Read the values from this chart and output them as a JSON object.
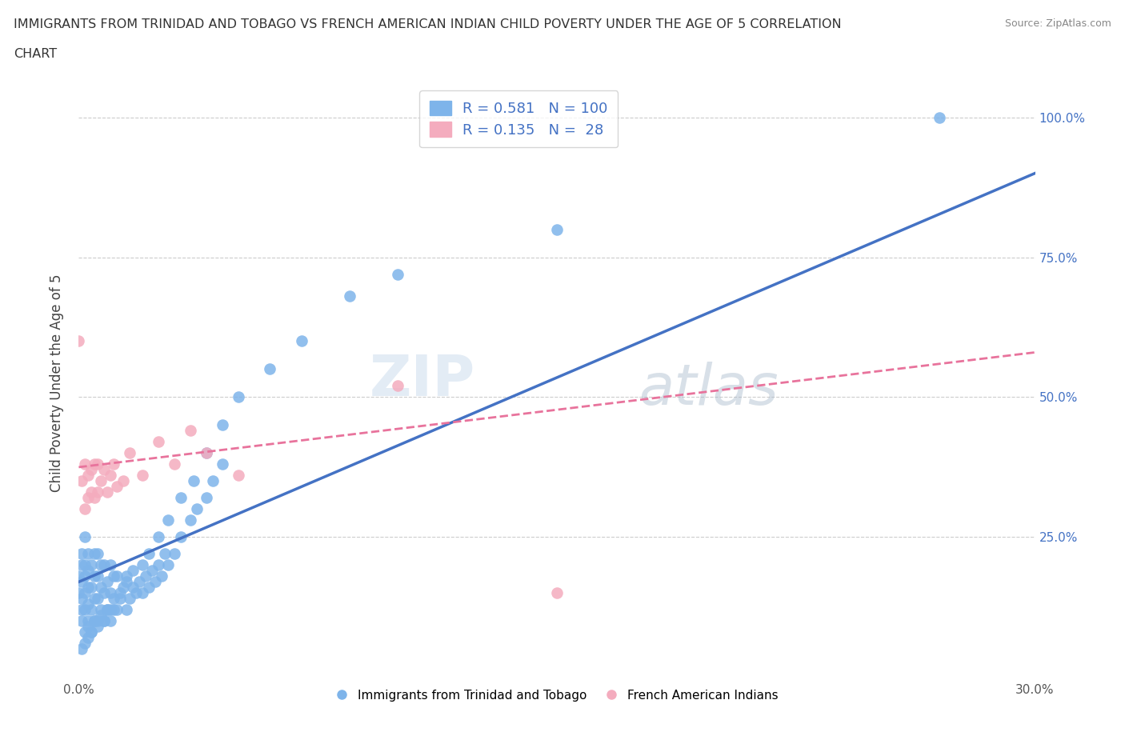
{
  "title_line1": "IMMIGRANTS FROM TRINIDAD AND TOBAGO VS FRENCH AMERICAN INDIAN CHILD POVERTY UNDER THE AGE OF 5 CORRELATION",
  "title_line2": "CHART",
  "source": "Source: ZipAtlas.com",
  "ylabel": "Child Poverty Under the Age of 5",
  "xlim": [
    0.0,
    0.3
  ],
  "ylim": [
    0.0,
    1.05
  ],
  "R_blue": 0.581,
  "N_blue": 100,
  "R_pink": 0.135,
  "N_pink": 28,
  "blue_color": "#7EB4EA",
  "pink_color": "#F4ACBE",
  "blue_line_color": "#4472C4",
  "pink_line_color": "#E8739C",
  "watermark_ZIP": "ZIP",
  "watermark_atlas": "atlas",
  "legend_label_blue": "Immigrants from Trinidad and Tobago",
  "legend_label_pink": "French American Indians",
  "blue_scatter_x": [
    0.0,
    0.0,
    0.001,
    0.001,
    0.001,
    0.001,
    0.001,
    0.001,
    0.002,
    0.002,
    0.002,
    0.002,
    0.002,
    0.002,
    0.003,
    0.003,
    0.003,
    0.003,
    0.003,
    0.004,
    0.004,
    0.004,
    0.004,
    0.005,
    0.005,
    0.005,
    0.005,
    0.006,
    0.006,
    0.006,
    0.006,
    0.007,
    0.007,
    0.007,
    0.008,
    0.008,
    0.008,
    0.009,
    0.009,
    0.01,
    0.01,
    0.01,
    0.011,
    0.011,
    0.012,
    0.012,
    0.013,
    0.014,
    0.015,
    0.015,
    0.016,
    0.017,
    0.018,
    0.019,
    0.02,
    0.021,
    0.022,
    0.023,
    0.024,
    0.025,
    0.026,
    0.027,
    0.028,
    0.03,
    0.032,
    0.035,
    0.037,
    0.04,
    0.042,
    0.045,
    0.001,
    0.002,
    0.003,
    0.003,
    0.004,
    0.005,
    0.006,
    0.007,
    0.008,
    0.009,
    0.01,
    0.011,
    0.013,
    0.015,
    0.017,
    0.02,
    0.022,
    0.025,
    0.028,
    0.032,
    0.036,
    0.04,
    0.045,
    0.05,
    0.06,
    0.07,
    0.085,
    0.1,
    0.15,
    0.27
  ],
  "blue_scatter_y": [
    0.15,
    0.18,
    0.1,
    0.12,
    0.14,
    0.17,
    0.2,
    0.22,
    0.08,
    0.12,
    0.15,
    0.18,
    0.2,
    0.25,
    0.1,
    0.13,
    0.16,
    0.19,
    0.22,
    0.08,
    0.12,
    0.16,
    0.2,
    0.1,
    0.14,
    0.18,
    0.22,
    0.1,
    0.14,
    0.18,
    0.22,
    0.12,
    0.16,
    0.2,
    0.1,
    0.15,
    0.2,
    0.12,
    0.17,
    0.1,
    0.15,
    0.2,
    0.12,
    0.18,
    0.12,
    0.18,
    0.14,
    0.16,
    0.12,
    0.18,
    0.14,
    0.16,
    0.15,
    0.17,
    0.15,
    0.18,
    0.16,
    0.19,
    0.17,
    0.2,
    0.18,
    0.22,
    0.2,
    0.22,
    0.25,
    0.28,
    0.3,
    0.32,
    0.35,
    0.38,
    0.05,
    0.06,
    0.07,
    0.09,
    0.08,
    0.1,
    0.09,
    0.11,
    0.1,
    0.12,
    0.12,
    0.14,
    0.15,
    0.17,
    0.19,
    0.2,
    0.22,
    0.25,
    0.28,
    0.32,
    0.35,
    0.4,
    0.45,
    0.5,
    0.55,
    0.6,
    0.68,
    0.72,
    0.8,
    1.0
  ],
  "pink_scatter_x": [
    0.0,
    0.001,
    0.002,
    0.002,
    0.003,
    0.003,
    0.004,
    0.004,
    0.005,
    0.005,
    0.006,
    0.006,
    0.007,
    0.008,
    0.009,
    0.01,
    0.011,
    0.012,
    0.014,
    0.016,
    0.02,
    0.025,
    0.03,
    0.035,
    0.04,
    0.05,
    0.1,
    0.15
  ],
  "pink_scatter_y": [
    0.6,
    0.35,
    0.3,
    0.38,
    0.32,
    0.36,
    0.33,
    0.37,
    0.32,
    0.38,
    0.33,
    0.38,
    0.35,
    0.37,
    0.33,
    0.36,
    0.38,
    0.34,
    0.35,
    0.4,
    0.36,
    0.42,
    0.38,
    0.44,
    0.4,
    0.36,
    0.52,
    0.15
  ],
  "blue_line_x0": 0.0,
  "blue_line_y0": 0.17,
  "blue_line_x1": 0.3,
  "blue_line_y1": 0.9,
  "pink_line_x0": 0.0,
  "pink_line_y0": 0.375,
  "pink_line_x1": 0.3,
  "pink_line_y1": 0.58
}
